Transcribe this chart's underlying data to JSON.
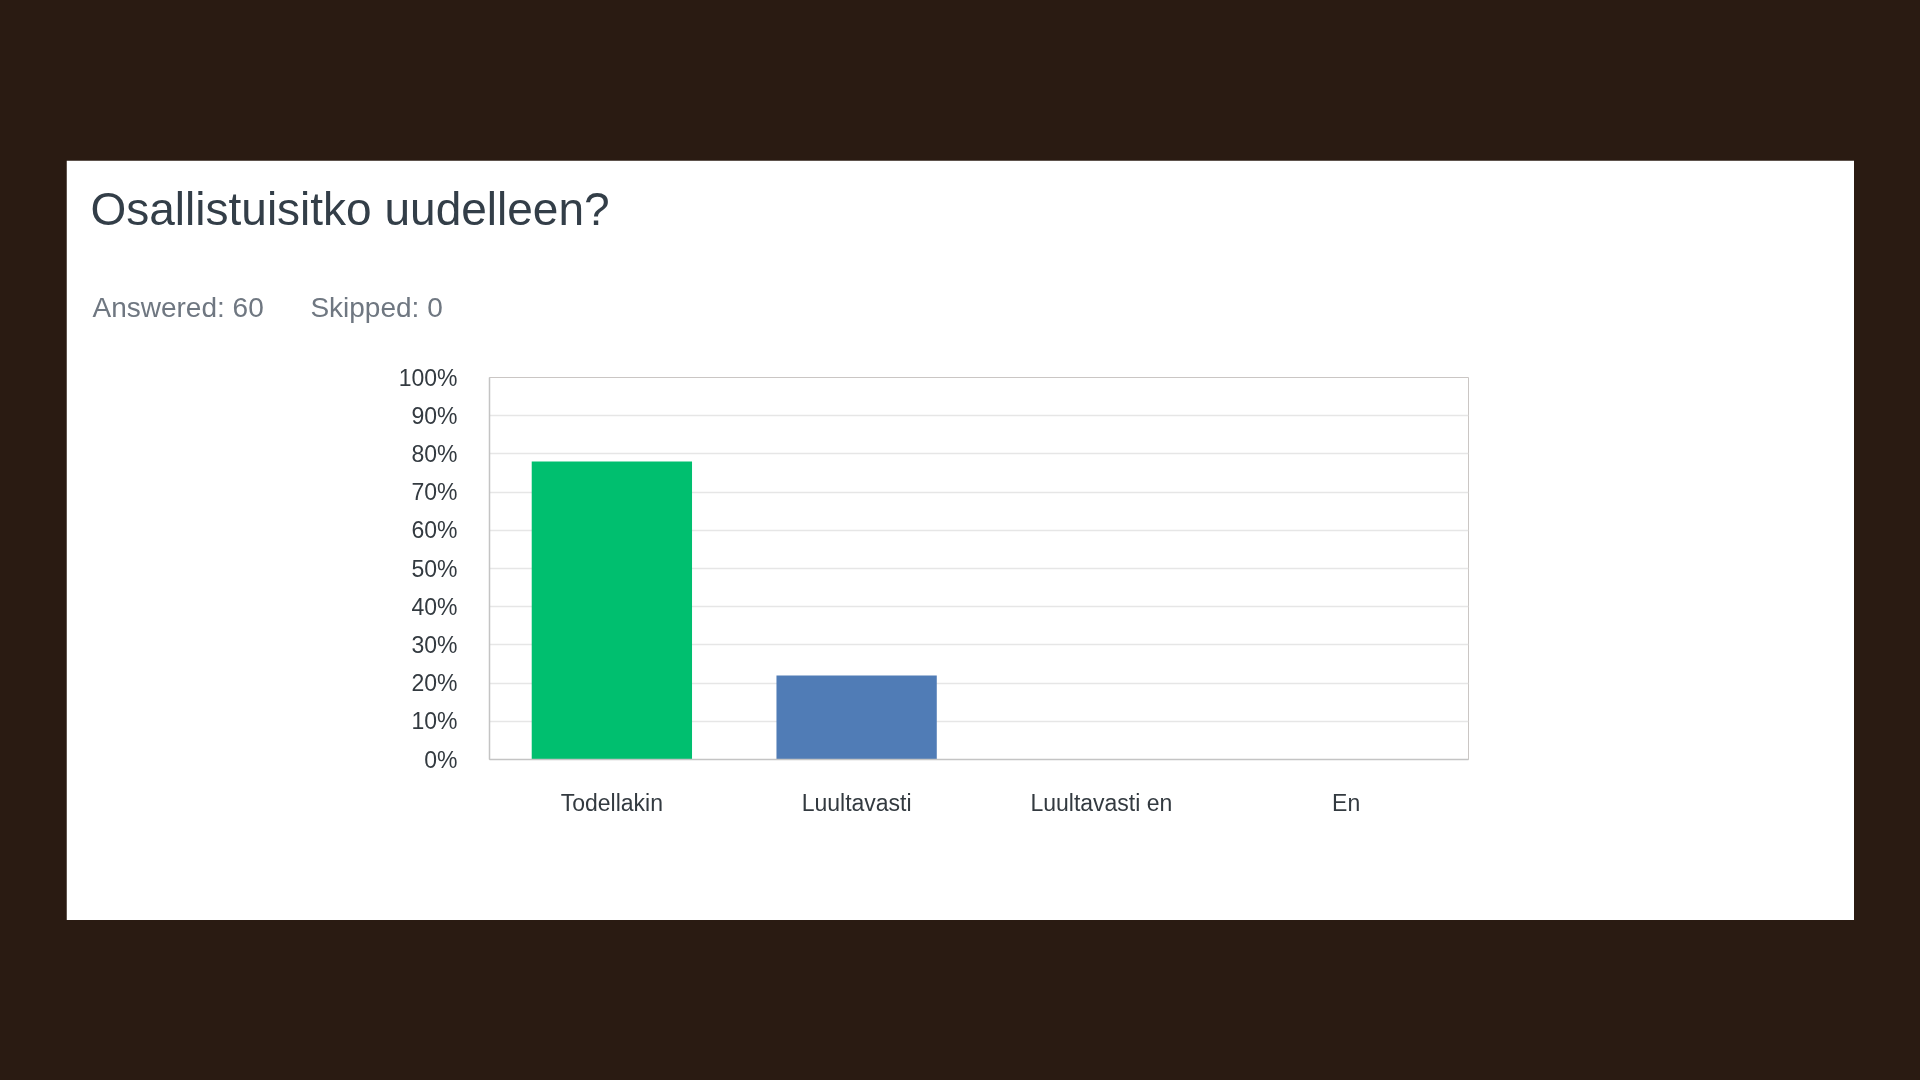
{
  "chart_data": {
    "type": "bar",
    "title": "Osallistuisitko uudelleen?",
    "subtitle": "Answered: 60      Skipped: 0",
    "categories": [
      "Todellakin",
      "Luultavasti",
      "Luultavasti en",
      "En"
    ],
    "values": [
      78,
      22,
      0,
      0
    ],
    "colors": [
      "#00bf6f",
      "#507cb6",
      "#507cb6",
      "#507cb6"
    ],
    "ylim": [
      0,
      100
    ],
    "yticks": [
      {
        "value": 0,
        "label": "0%"
      },
      {
        "value": 10,
        "label": "10%"
      },
      {
        "value": 20,
        "label": "20%"
      },
      {
        "value": 30,
        "label": "30%"
      },
      {
        "value": 40,
        "label": "40%"
      },
      {
        "value": 50,
        "label": "50%"
      },
      {
        "value": 60,
        "label": "60%"
      },
      {
        "value": 70,
        "label": "70%"
      },
      {
        "value": 80,
        "label": "80%"
      },
      {
        "value": 90,
        "label": "90%"
      },
      {
        "value": 100,
        "label": "100%"
      }
    ],
    "grid": "y"
  }
}
